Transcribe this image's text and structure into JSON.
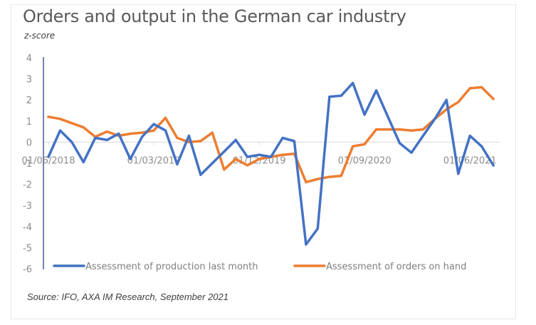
{
  "chart_data": {
    "type": "line",
    "title": "Orders and output in the German car industry",
    "subtitle": "z-score",
    "source": "Source: IFO, AXA IM Research, September 2021",
    "xlabel": "",
    "ylabel": "z-score",
    "ylim": [
      -6,
      4
    ],
    "yticks": [
      4,
      3,
      2,
      1,
      0,
      -1,
      -2,
      -3,
      -4,
      -5,
      -6
    ],
    "x_tick_labels": [
      {
        "index": 0,
        "label": "01/06/2018"
      },
      {
        "index": 9,
        "label": "01/03/2019"
      },
      {
        "index": 18,
        "label": "01/12/2019"
      },
      {
        "index": 27,
        "label": "01/09/2020"
      },
      {
        "index": 36,
        "label": "01/06/2021"
      }
    ],
    "x": [
      "2018-06",
      "2018-07",
      "2018-08",
      "2018-09",
      "2018-10",
      "2018-11",
      "2018-12",
      "2019-01",
      "2019-02",
      "2019-03",
      "2019-04",
      "2019-05",
      "2019-06",
      "2019-07",
      "2019-08",
      "2019-09",
      "2019-10",
      "2019-11",
      "2019-12",
      "2020-01",
      "2020-02",
      "2020-03",
      "2020-04",
      "2020-05",
      "2020-06",
      "2020-07",
      "2020-08",
      "2020-09",
      "2020-10",
      "2020-11",
      "2020-12",
      "2021-01",
      "2021-02",
      "2021-03",
      "2021-04",
      "2021-05",
      "2021-06",
      "2021-07",
      "2021-08"
    ],
    "series": [
      {
        "name": "Assessment of production last month",
        "color": "#4472c4",
        "values": [
          -0.7,
          0.55,
          0.0,
          -0.95,
          0.2,
          0.1,
          0.4,
          -0.8,
          0.25,
          0.85,
          0.55,
          -1.05,
          0.3,
          -1.55,
          -1.0,
          -0.45,
          0.1,
          -0.7,
          -0.6,
          -0.7,
          0.2,
          0.05,
          -4.85,
          -4.1,
          2.15,
          2.2,
          2.8,
          1.3,
          2.45,
          1.2,
          -0.05,
          -0.5,
          0.3,
          1.1,
          2.0,
          -1.5,
          0.3,
          -0.2,
          -1.1
        ]
      },
      {
        "name": "Assessment of orders on hand",
        "color": "#ed7d31",
        "values": [
          1.2,
          1.1,
          0.9,
          0.7,
          0.25,
          0.5,
          0.3,
          0.4,
          0.45,
          0.55,
          1.15,
          0.2,
          0.0,
          0.05,
          0.45,
          -1.3,
          -0.8,
          -1.1,
          -0.8,
          -0.7,
          -0.6,
          -0.55,
          -1.9,
          -1.75,
          -1.65,
          -1.6,
          -0.2,
          -0.1,
          0.6,
          0.6,
          0.6,
          0.55,
          0.6,
          1.1,
          1.55,
          1.9,
          2.55,
          2.6,
          2.05
        ]
      }
    ],
    "grid": false,
    "zero_line": true,
    "legend_position": "bottom"
  }
}
